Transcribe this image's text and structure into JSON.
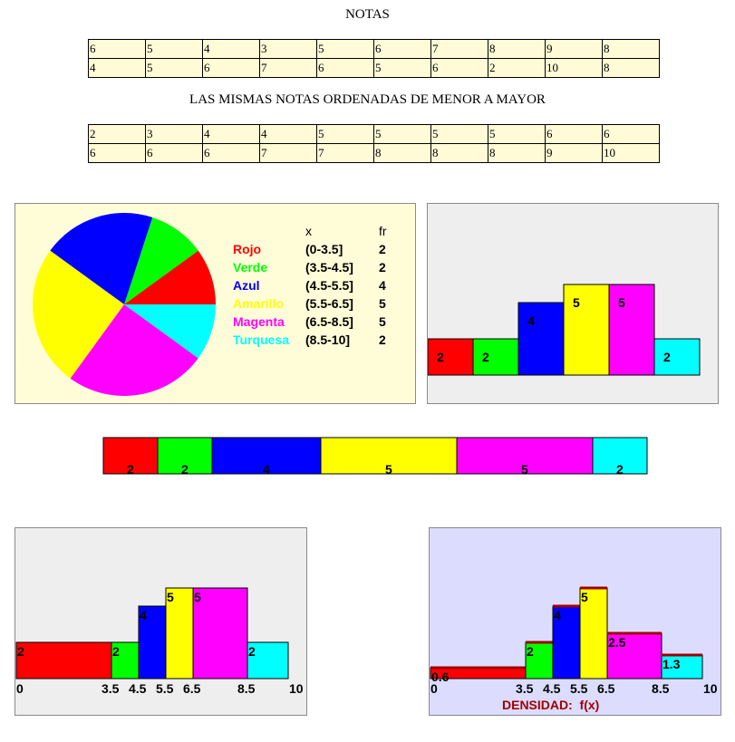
{
  "titles": {
    "grades": "NOTAS",
    "sorted": "LAS MISMAS NOTAS ORDENADAS DE MENOR A MAYOR"
  },
  "grades_table": [
    [
      "6",
      "5",
      "4",
      "3",
      "5",
      "6",
      "7",
      "8",
      "9",
      "8"
    ],
    [
      "4",
      "5",
      "6",
      "7",
      "6",
      "5",
      "6",
      "2",
      "10",
      "8"
    ]
  ],
  "sorted_table": [
    [
      "2",
      "3",
      "4",
      "4",
      "5",
      "5",
      "5",
      "5",
      "6",
      "6"
    ],
    [
      "6",
      "6",
      "6",
      "7",
      "7",
      "8",
      "8",
      "8",
      "9",
      "10"
    ]
  ],
  "legend": {
    "header_x": "x",
    "header_fr": "fr",
    "rows": [
      {
        "name": "Rojo",
        "interval": "(0-3.5]",
        "fr": "2",
        "color": "#ff0000"
      },
      {
        "name": "Verde",
        "interval": "(3.5-4.5]",
        "fr": "2",
        "color": "#00ff00"
      },
      {
        "name": "Azul",
        "interval": "(4.5-5.5]",
        "fr": "4",
        "color": "#0000ff"
      },
      {
        "name": "Amarillo",
        "interval": "(5.5-6.5]",
        "fr": "5",
        "color": "#ffff00"
      },
      {
        "name": "Magenta",
        "interval": "(6.5-8.5]",
        "fr": "5",
        "color": "#ff00ff"
      },
      {
        "name": "Turquesa",
        "interval": "(8.5-10]",
        "fr": "2",
        "color": "#00ffff"
      }
    ]
  },
  "chart_data": [
    {
      "type": "pie",
      "categories": [
        "Rojo",
        "Verde",
        "Azul",
        "Amarillo",
        "Magenta",
        "Turquesa"
      ],
      "values": [
        2,
        2,
        4,
        5,
        5,
        2
      ],
      "colors": [
        "#ff0000",
        "#00ff00",
        "#0000ff",
        "#ffff00",
        "#ff00ff",
        "#00ffff"
      ]
    },
    {
      "type": "bar",
      "categories": [
        "(0-3.5]",
        "(3.5-4.5]",
        "(4.5-5.5]",
        "(5.5-6.5]",
        "(6.5-8.5]",
        "(8.5-10]"
      ],
      "values": [
        2,
        2,
        4,
        5,
        5,
        2
      ],
      "colors": [
        "#ff0000",
        "#00ff00",
        "#0000ff",
        "#ffff00",
        "#ff00ff",
        "#00ffff"
      ],
      "ylim": [
        0,
        5
      ]
    },
    {
      "type": "bar",
      "stacked_horizontal": true,
      "categories": [
        "(0-3.5]",
        "(3.5-4.5]",
        "(4.5-5.5]",
        "(5.5-6.5]",
        "(6.5-8.5]",
        "(8.5-10]"
      ],
      "values": [
        2,
        2,
        4,
        5,
        5,
        2
      ],
      "colors": [
        "#ff0000",
        "#00ff00",
        "#0000ff",
        "#ffff00",
        "#ff00ff",
        "#00ffff"
      ]
    },
    {
      "type": "bar",
      "histogram": true,
      "edges": [
        0,
        3.5,
        4.5,
        5.5,
        6.5,
        8.5,
        10
      ],
      "edge_labels": [
        "0",
        "3.5",
        "4.5",
        "5.5",
        "6.5",
        "8.5",
        "10"
      ],
      "values": [
        2,
        2,
        4,
        5,
        5,
        2
      ],
      "value_labels": [
        "2",
        "2",
        "4",
        "5",
        "5",
        "2"
      ],
      "colors": [
        "#ff0000",
        "#00ff00",
        "#0000ff",
        "#ffff00",
        "#ff00ff",
        "#00ffff"
      ],
      "xlim": [
        0,
        10
      ],
      "ylim": [
        0,
        5
      ]
    },
    {
      "type": "bar",
      "histogram": true,
      "edges": [
        0,
        3.5,
        4.5,
        5.5,
        6.5,
        8.5,
        10
      ],
      "edge_labels": [
        "0",
        "3.5",
        "4.5",
        "5.5",
        "6.5",
        "8.5",
        "10"
      ],
      "values": [
        0.6,
        2,
        4,
        5,
        2.5,
        1.3
      ],
      "value_labels": [
        "0.6",
        "2",
        "4",
        "5",
        "2.5",
        "1.3"
      ],
      "colors": [
        "#ff0000",
        "#00ff00",
        "#0000ff",
        "#ffff00",
        "#ff00ff",
        "#00ffff"
      ],
      "xlim": [
        0,
        10
      ],
      "ylim": [
        0,
        5
      ],
      "xlabel": "DENSIDAD:  f(x)",
      "xlabel_color": "#a00000"
    }
  ]
}
